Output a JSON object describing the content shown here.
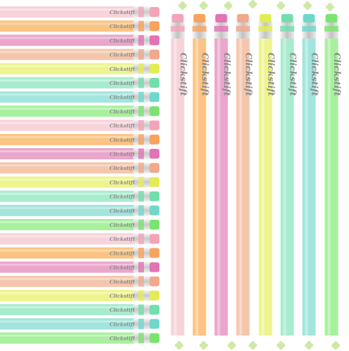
{
  "brand": "Clickstift"
}
